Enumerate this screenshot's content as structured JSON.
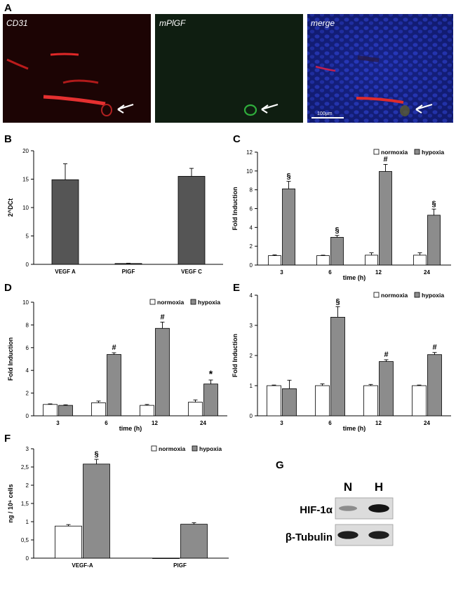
{
  "panel_letters": {
    "A": "A",
    "B": "B",
    "C": "C",
    "D": "D",
    "E": "E",
    "F": "F",
    "G": "G"
  },
  "micrographs": [
    {
      "label": "CD31",
      "channel": "red",
      "arrow": true
    },
    {
      "label": "mPlGF",
      "channel": "green",
      "arrow": true
    },
    {
      "label": "merge",
      "channel": "merge",
      "arrow": true,
      "scale_bar": "100µm"
    }
  ],
  "colors": {
    "normoxia": "#ffffff",
    "hypoxia": "#8c8c8c",
    "dark_bar": "#555555",
    "red_signal": "#d62020",
    "green_signal": "#2fae3c",
    "nuclei_blue": "#1a2aa8"
  },
  "western_blot": {
    "lanes": [
      "N",
      "H"
    ],
    "rows": [
      {
        "label": "HIF-1α",
        "band_intensity": [
          0.35,
          0.95
        ]
      },
      {
        "label": "β-Tubulin",
        "band_intensity": [
          0.9,
          0.9
        ]
      }
    ]
  },
  "chart_data": [
    {
      "panel": "B",
      "type": "bar",
      "categories": [
        "VEGF A",
        "PlGF",
        "VEGF C"
      ],
      "values": [
        14.9,
        0.15,
        15.5
      ],
      "errors": [
        2.8,
        0.05,
        1.4
      ],
      "ylabel": "2^DCt",
      "xlabel": "",
      "ylim": [
        0,
        20
      ],
      "yticks": [
        "0",
        "5",
        "10",
        "15",
        "20"
      ]
    },
    {
      "panel": "C",
      "type": "bar",
      "categories": [
        "3",
        "6",
        "12",
        "24"
      ],
      "xlabel": "time (h)",
      "ylabel": "Fold Induction",
      "ylim": [
        0,
        12
      ],
      "yticks": [
        "0",
        "2",
        "4",
        "6",
        "8",
        "10",
        "12"
      ],
      "legend": [
        "normoxia",
        "hypoxia"
      ],
      "series": [
        {
          "name": "normoxia",
          "values": [
            1.0,
            1.0,
            1.05,
            1.05
          ],
          "errors": [
            0.08,
            0.05,
            0.25,
            0.25
          ]
        },
        {
          "name": "hypoxia",
          "values": [
            8.1,
            2.95,
            9.95,
            5.3
          ],
          "errors": [
            0.8,
            0.2,
            0.75,
            0.65
          ]
        }
      ],
      "annotations": [
        "§",
        "§",
        "#",
        "§"
      ]
    },
    {
      "panel": "D",
      "type": "bar",
      "categories": [
        "3",
        "6",
        "12",
        "24"
      ],
      "xlabel": "time (h)",
      "ylabel": "Fold Induction",
      "ylim": [
        0,
        10
      ],
      "yticks": [
        "0",
        "2",
        "4",
        "6",
        "8",
        "10"
      ],
      "legend": [
        "normoxia",
        "hypoxia"
      ],
      "series": [
        {
          "name": "normoxia",
          "values": [
            1.0,
            1.15,
            0.92,
            1.2
          ],
          "errors": [
            0.05,
            0.15,
            0.08,
            0.2
          ]
        },
        {
          "name": "hypoxia",
          "values": [
            0.92,
            5.4,
            7.7,
            2.8
          ],
          "errors": [
            0.05,
            0.15,
            0.55,
            0.35
          ]
        }
      ],
      "annotations": [
        "",
        "#",
        "#",
        "*"
      ]
    },
    {
      "panel": "E",
      "type": "bar",
      "categories": [
        "3",
        "6",
        "12",
        "24"
      ],
      "xlabel": "time (h)",
      "ylabel": "Fold Induction",
      "ylim": [
        0,
        4
      ],
      "yticks": [
        "0",
        "1",
        "2",
        "3",
        "4"
      ],
      "legend": [
        "normoxia",
        "hypoxia"
      ],
      "series": [
        {
          "name": "normoxia",
          "values": [
            1.0,
            1.0,
            1.0,
            1.0
          ],
          "errors": [
            0.02,
            0.06,
            0.04,
            0.02
          ]
        },
        {
          "name": "hypoxia",
          "values": [
            0.9,
            3.27,
            1.8,
            2.03
          ],
          "errors": [
            0.28,
            0.35,
            0.06,
            0.07
          ]
        }
      ],
      "annotations": [
        "",
        "§",
        "#",
        "#"
      ]
    },
    {
      "panel": "F",
      "type": "bar",
      "categories": [
        "VEGF-A",
        "PlGF"
      ],
      "xlabel": "",
      "ylabel": "ng / 10⁶ cells",
      "ylim": [
        0,
        3
      ],
      "yticks": [
        "0",
        "0,5",
        "1",
        "1,5",
        "2",
        "2,5",
        "3"
      ],
      "legend": [
        "normoxia",
        "hypoxia"
      ],
      "series": [
        {
          "name": "normoxia",
          "values": [
            0.88,
            0.0
          ],
          "errors": [
            0.04,
            0.0
          ]
        },
        {
          "name": "hypoxia",
          "values": [
            2.58,
            0.93
          ],
          "errors": [
            0.13,
            0.04
          ]
        }
      ],
      "annotations": [
        "§",
        ""
      ]
    }
  ]
}
